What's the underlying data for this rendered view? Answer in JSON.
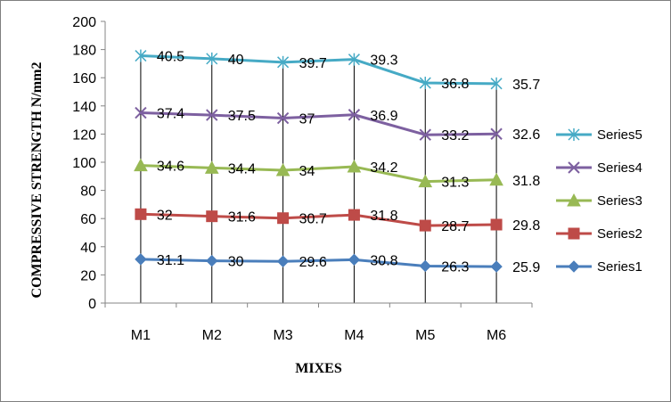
{
  "chart_data": {
    "type": "line",
    "title": "",
    "xlabel": "MIXES",
    "ylabel": "COMPRESSIVE STRENGTH N/mm2",
    "categories": [
      "M1",
      "M2",
      "M3",
      "M4",
      "M5",
      "M6"
    ],
    "ylim": [
      0,
      200
    ],
    "ytick_step": 20,
    "grid": "vertical drop lines at categories",
    "stacked": true,
    "legend_position": "right",
    "series": [
      {
        "name": "Series1",
        "values": [
          31.1,
          30,
          29.6,
          30.8,
          26.3,
          25.9
        ],
        "color": "#4a7ebb",
        "marker": "diamond"
      },
      {
        "name": "Series2",
        "values": [
          32,
          31.6,
          30.7,
          31.8,
          28.7,
          29.8
        ],
        "color": "#be4b48",
        "marker": "square"
      },
      {
        "name": "Series3",
        "values": [
          34.6,
          34.4,
          34,
          34.2,
          31.3,
          31.8
        ],
        "color": "#98b954",
        "marker": "triangle"
      },
      {
        "name": "Series4",
        "values": [
          37.4,
          37.5,
          37,
          36.9,
          33.2,
          32.6
        ],
        "color": "#7d60a0",
        "marker": "x"
      },
      {
        "name": "Series5",
        "values": [
          40.5,
          40,
          39.7,
          39.3,
          36.8,
          35.7
        ],
        "color": "#46aac5",
        "marker": "star"
      }
    ]
  }
}
